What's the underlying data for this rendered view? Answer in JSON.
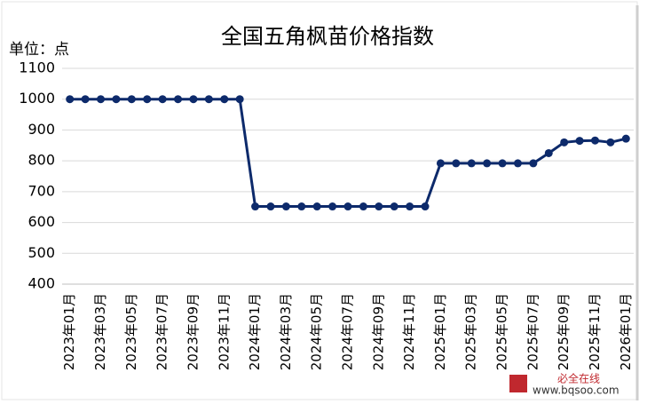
{
  "chart_data": {
    "type": "line",
    "title": "全国五角枫苗价格指数",
    "y_label": "单位：点",
    "categories": [
      "2023年01月",
      null,
      "2023年03月",
      null,
      "2023年05月",
      null,
      "2023年07月",
      null,
      "2023年09月",
      null,
      "2023年11月",
      null,
      "2024年01月",
      null,
      "2024年03月",
      null,
      "2024年05月",
      null,
      "2024年07月",
      null,
      "2024年09月",
      null,
      "2024年11月",
      null,
      "2025年01月",
      null,
      "2025年03月",
      null,
      "2025年05月",
      null,
      "2025年07月",
      null,
      "2025年09月",
      null,
      "2025年11月",
      null,
      "2026年01月"
    ],
    "values": [
      1000,
      1000,
      1000,
      1000,
      1000,
      1000,
      1000,
      1000,
      1000,
      1000,
      1000,
      1000,
      652,
      652,
      652,
      652,
      652,
      652,
      652,
      652,
      652,
      652,
      652,
      652,
      792,
      792,
      792,
      792,
      792,
      792,
      792,
      825,
      860,
      865,
      866,
      860,
      872
    ],
    "color": "#0d2a6b",
    "ylim": [
      400,
      1100
    ],
    "yticks": [
      400,
      500,
      600,
      700,
      800,
      900,
      1000,
      1100
    ],
    "grid": true,
    "annotations": [
      "必全在线",
      "www.bqsoo.com"
    ]
  }
}
